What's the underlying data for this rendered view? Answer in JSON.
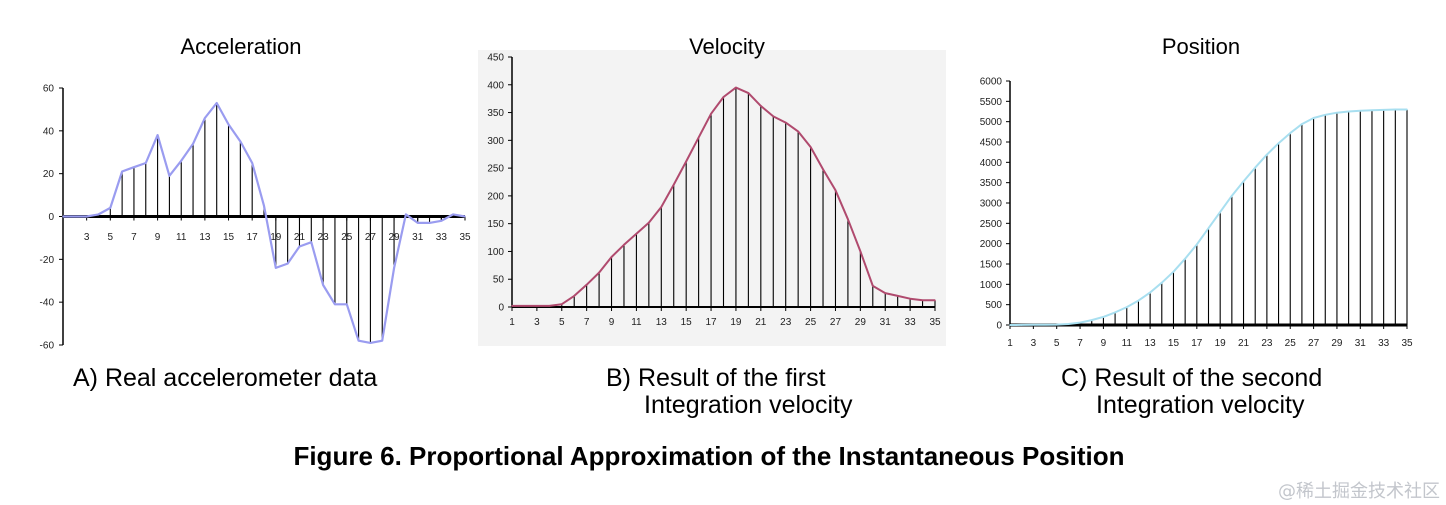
{
  "figure_title": "Figure 6.  Proportional Approximation of the Instantaneous Position",
  "watermark": "@稀土掘金技术社区",
  "colors": {
    "accel_line": "#9a9cf0",
    "vel_line": "#b04a6e",
    "pos_line": "#a8dff0",
    "stem": "#000000"
  },
  "chart_data": [
    {
      "type": "line",
      "title": "Acceleration",
      "caption_lines": [
        "A) Real accelerometer data"
      ],
      "xticks": [
        "3",
        "5",
        "7",
        "9",
        "11",
        "13",
        "15",
        "17",
        "19",
        "21",
        "23",
        "25",
        "27",
        "29",
        "31",
        "33",
        "35"
      ],
      "yticks": [
        "60",
        "40",
        "20",
        "0",
        "-20",
        "-40",
        "-60"
      ],
      "ylim": [
        -60,
        60
      ],
      "x": [
        1,
        2,
        3,
        4,
        5,
        6,
        7,
        8,
        9,
        10,
        11,
        12,
        13,
        14,
        15,
        16,
        17,
        18,
        19,
        20,
        21,
        22,
        23,
        24,
        25,
        26,
        27,
        28,
        29,
        30,
        31,
        32,
        33,
        34,
        35
      ],
      "values": [
        0,
        0,
        0,
        1,
        4,
        21,
        23,
        25,
        38,
        19,
        26,
        34,
        46,
        53,
        43,
        35,
        25,
        5,
        -24,
        -22,
        -14,
        -12,
        -32,
        -41,
        -41,
        -58,
        -59,
        -58,
        -24,
        1,
        -3,
        -3,
        -2,
        1,
        0
      ]
    },
    {
      "type": "line",
      "title": "Velocity",
      "caption_lines": [
        "B) Result of the first",
        "Integration velocity"
      ],
      "xticks": [
        "1",
        "3",
        "5",
        "7",
        "9",
        "11",
        "13",
        "15",
        "17",
        "19",
        "21",
        "23",
        "25",
        "27",
        "29",
        "31",
        "33",
        "35"
      ],
      "yticks": [
        "450",
        "400",
        "350",
        "300",
        "250",
        "200",
        "150",
        "100",
        "50",
        "0"
      ],
      "ylim": [
        0,
        450
      ],
      "x": [
        1,
        2,
        3,
        4,
        5,
        6,
        7,
        8,
        9,
        10,
        11,
        12,
        13,
        14,
        15,
        16,
        17,
        18,
        19,
        20,
        21,
        22,
        23,
        24,
        25,
        26,
        27,
        28,
        29,
        30,
        31,
        32,
        33,
        34,
        35
      ],
      "values": [
        2,
        2,
        2,
        2,
        5,
        20,
        40,
        62,
        90,
        112,
        132,
        152,
        180,
        220,
        262,
        305,
        348,
        378,
        395,
        385,
        362,
        343,
        332,
        316,
        288,
        248,
        210,
        158,
        100,
        38,
        25,
        20,
        15,
        12,
        12
      ]
    },
    {
      "type": "line",
      "title": "Position",
      "caption_lines": [
        "C) Result of the second",
        "Integration velocity"
      ],
      "xticks": [
        "1",
        "3",
        "5",
        "7",
        "9",
        "11",
        "13",
        "15",
        "17",
        "19",
        "21",
        "23",
        "25",
        "27",
        "29",
        "31",
        "33",
        "35"
      ],
      "yticks": [
        "6000",
        "5500",
        "5000",
        "4500",
        "4000",
        "3500",
        "3000",
        "2500",
        "2000",
        "1500",
        "1000",
        "500",
        "0"
      ],
      "ylim": [
        0,
        6000
      ],
      "x": [
        1,
        2,
        3,
        4,
        5,
        6,
        7,
        8,
        9,
        10,
        11,
        12,
        13,
        14,
        15,
        16,
        17,
        18,
        19,
        20,
        21,
        22,
        23,
        24,
        25,
        26,
        27,
        28,
        29,
        30,
        31,
        32,
        33,
        34,
        35
      ],
      "values": [
        0,
        2,
        4,
        6,
        10,
        25,
        60,
        120,
        200,
        310,
        440,
        600,
        800,
        1040,
        1310,
        1630,
        1980,
        2380,
        2780,
        3180,
        3530,
        3870,
        4190,
        4470,
        4720,
        4940,
        5090,
        5170,
        5220,
        5250,
        5270,
        5280,
        5290,
        5300,
        5300
      ]
    }
  ]
}
